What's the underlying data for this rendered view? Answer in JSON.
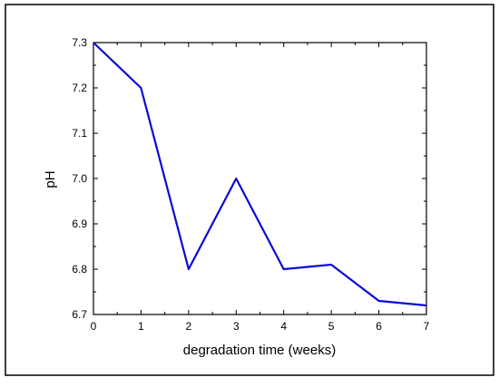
{
  "chart_data": {
    "type": "line",
    "xlabel": "degradation time (weeks)",
    "ylabel": "pH",
    "xlim": [
      0,
      7
    ],
    "ylim": [
      6.7,
      7.3
    ],
    "x_ticks": [
      "0",
      "1",
      "2",
      "3",
      "4",
      "5",
      "6",
      "7"
    ],
    "y_ticks": [
      "6.7",
      "6.8",
      "6.9",
      "7.0",
      "7.1",
      "7.2",
      "7.3"
    ],
    "grid": false,
    "series": [
      {
        "color": "#0a0ad4",
        "x": [
          0,
          1,
          2,
          3,
          4,
          5,
          6,
          7
        ],
        "y": [
          7.3,
          7.2,
          6.8,
          7.0,
          6.8,
          6.81,
          6.73,
          6.72
        ]
      }
    ]
  }
}
